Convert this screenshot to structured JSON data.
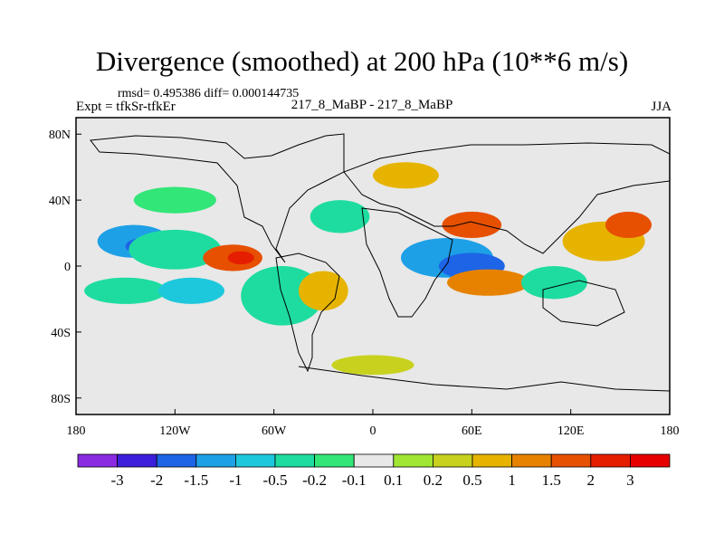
{
  "chart_data": {
    "type": "heatmap",
    "title": "Divergence (smoothed) at 200 hPa (10**6 m/s)",
    "stats_line": "rmsd= 0.495386 diff= 0.000144735",
    "expt_label": "Expt = tfkSr-tfkEr",
    "center_label": "217_8_MaBP - 217_8_MaBP",
    "season": "JJA",
    "x_ticks": [
      {
        "value": -180,
        "label": "180"
      },
      {
        "value": -120,
        "label": "120W"
      },
      {
        "value": -60,
        "label": "60W"
      },
      {
        "value": 0,
        "label": "0"
      },
      {
        "value": 60,
        "label": "60E"
      },
      {
        "value": 120,
        "label": "120E"
      },
      {
        "value": 180,
        "label": "180"
      }
    ],
    "y_ticks": [
      {
        "value": 80,
        "label": "80N"
      },
      {
        "value": 40,
        "label": "40N"
      },
      {
        "value": 0,
        "label": "0"
      },
      {
        "value": -40,
        "label": "40S"
      },
      {
        "value": -80,
        "label": "80S"
      }
    ],
    "xlim": [
      -180,
      180
    ],
    "ylim": [
      -90,
      90
    ],
    "colorbar": {
      "levels": [
        "-3",
        "-2",
        "-1.5",
        "-1",
        "-0.5",
        "-0.2",
        "-0.1",
        "0.1",
        "0.2",
        "0.5",
        "1",
        "1.5",
        "2",
        "3"
      ],
      "colors": [
        "#8a2be2",
        "#3c1edc",
        "#1e64e6",
        "#1ea0e6",
        "#1ec8dc",
        "#1edca0",
        "#32e678",
        "#e8e8e8",
        "#a0e632",
        "#c8d21e",
        "#e6b400",
        "#e68200",
        "#e65000",
        "#e61e00",
        "#e60000"
      ]
    },
    "blobs": [
      {
        "lon": -145,
        "lat": 15,
        "rx": 22,
        "ry": 10,
        "level": -1.5
      },
      {
        "lon": -140,
        "lat": 12,
        "rx": 10,
        "ry": 5,
        "level": -2
      },
      {
        "lon": -120,
        "lat": 10,
        "rx": 28,
        "ry": 12,
        "level": -0.5
      },
      {
        "lon": -85,
        "lat": 5,
        "rx": 18,
        "ry": 8,
        "level": 1.5
      },
      {
        "lon": -80,
        "lat": 5,
        "rx": 8,
        "ry": 4,
        "level": 2
      },
      {
        "lon": -150,
        "lat": -15,
        "rx": 25,
        "ry": 8,
        "level": -0.5
      },
      {
        "lon": -110,
        "lat": -15,
        "rx": 20,
        "ry": 8,
        "level": -1
      },
      {
        "lon": -55,
        "lat": -18,
        "rx": 25,
        "ry": 18,
        "level": -0.5
      },
      {
        "lon": -30,
        "lat": -15,
        "rx": 15,
        "ry": 12,
        "level": 0.5
      },
      {
        "lon": 45,
        "lat": 5,
        "rx": 28,
        "ry": 12,
        "level": -1.5
      },
      {
        "lon": 60,
        "lat": 0,
        "rx": 20,
        "ry": 8,
        "level": -2
      },
      {
        "lon": 60,
        "lat": 25,
        "rx": 18,
        "ry": 8,
        "level": 1.5
      },
      {
        "lon": 70,
        "lat": -10,
        "rx": 25,
        "ry": 8,
        "level": 1
      },
      {
        "lon": 140,
        "lat": 15,
        "rx": 25,
        "ry": 12,
        "level": 0.5
      },
      {
        "lon": 155,
        "lat": 25,
        "rx": 14,
        "ry": 8,
        "level": 1.5
      },
      {
        "lon": 110,
        "lat": -10,
        "rx": 20,
        "ry": 10,
        "level": -0.5
      },
      {
        "lon": -20,
        "lat": 30,
        "rx": 18,
        "ry": 10,
        "level": -0.5
      },
      {
        "lon": 0,
        "lat": -60,
        "rx": 25,
        "ry": 6,
        "level": 0.2
      },
      {
        "lon": -120,
        "lat": 40,
        "rx": 25,
        "ry": 8,
        "level": -0.2
      },
      {
        "lon": 20,
        "lat": 55,
        "rx": 20,
        "ry": 8,
        "level": 0.5
      }
    ]
  }
}
